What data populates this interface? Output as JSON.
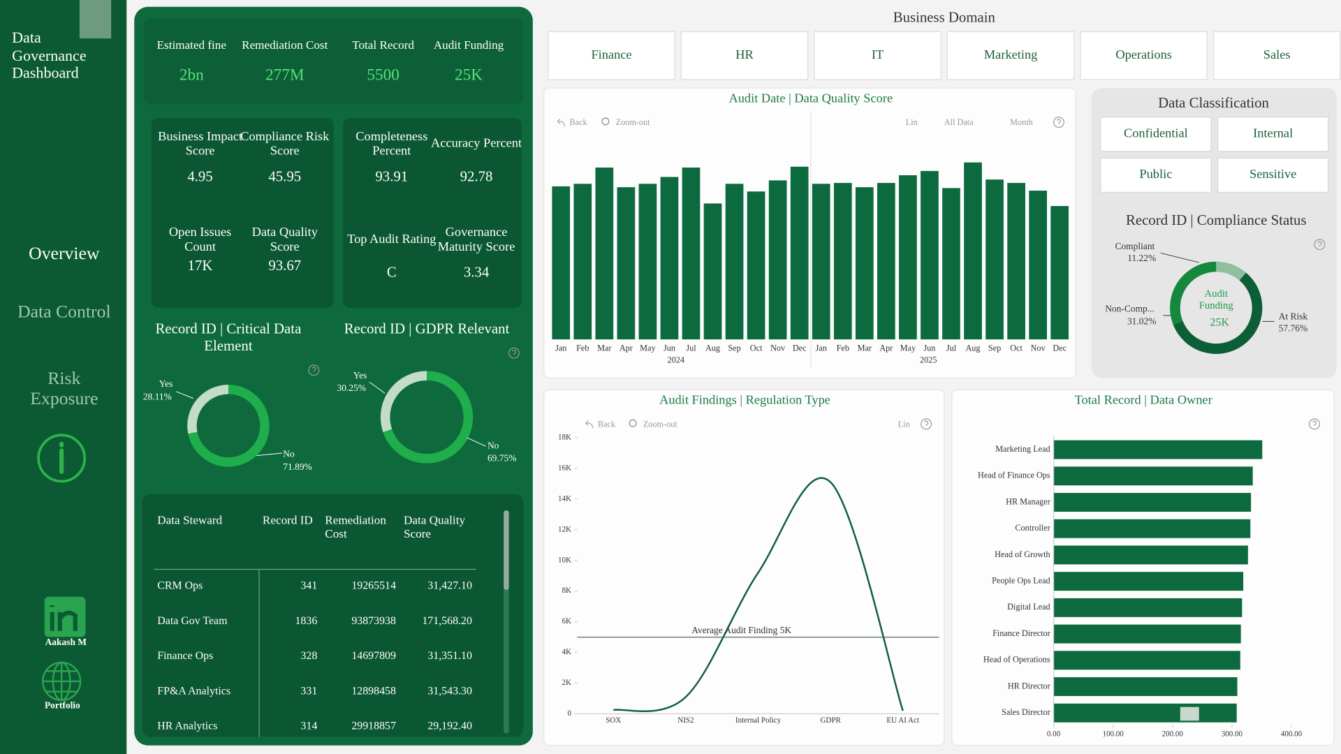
{
  "sidebar": {
    "title": "Data Governance Dashboard",
    "nav": [
      "Overview",
      "Data Control",
      "Risk Exposure"
    ],
    "links": [
      "Aakash M",
      "Portfolio"
    ]
  },
  "kpis": [
    {
      "label": "Estimated fine",
      "value": "2bn"
    },
    {
      "label": "Remediation Cost",
      "value": "277M"
    },
    {
      "label": "Total Record",
      "value": 5500
    },
    {
      "label": "Audit Funding",
      "value": "25K"
    }
  ],
  "cards": [
    [
      {
        "label": "Business Impact Score",
        "value": 4.95
      },
      {
        "label": "Compliance Risk Score",
        "value": 45.95
      },
      {
        "label": "Open Issues Count",
        "value": "17K"
      },
      {
        "label": "Data Quality Score",
        "value": 93.67
      }
    ],
    [
      {
        "label": "Completeness Percent",
        "value": 93.91
      },
      {
        "label": "Accuracy Percent",
        "value": 92.78
      },
      {
        "label": "Top Audit Rating",
        "value": "C"
      },
      {
        "label": "Governance Maturity Score",
        "value": 3.34
      }
    ]
  ],
  "domain_slicer": {
    "title": "Business Domain",
    "items": [
      "Finance",
      "HR",
      "IT",
      "Marketing",
      "Operations",
      "Sales"
    ]
  },
  "classification_slicer": {
    "title": "Data Classification",
    "items": [
      "Confidential",
      "Internal",
      "Public",
      "Sensitive"
    ]
  },
  "toolbar": {
    "back": "Back",
    "zoom": "Zoom-out",
    "scale": "Lin",
    "range": "All Data",
    "level": "Month"
  },
  "table": {
    "headers": [
      "Data Steward",
      "Record ID",
      "Remediation Cost",
      "Data Quality Score"
    ],
    "rows": [
      [
        "CRM Ops",
        341,
        19265514,
        "31,427.10"
      ],
      [
        "Data Gov Team",
        1836,
        93873938,
        "171,568.20"
      ],
      [
        "Finance Ops",
        328,
        14697809,
        "31,351.10"
      ],
      [
        "FP&A Analytics",
        331,
        12898458,
        "31,543.30"
      ],
      [
        "HR Analytics",
        314,
        29918857,
        "29,192.40"
      ]
    ]
  },
  "chart_data": [
    {
      "type": "donut",
      "title": "Record ID | Critical Data Element",
      "categories": [
        "Yes",
        "No"
      ],
      "values": [
        28.11,
        71.89
      ],
      "value_labels": [
        "28.11%",
        "71.89%"
      ],
      "colors": [
        "#c3dcc8",
        "#1fae4b"
      ]
    },
    {
      "type": "donut",
      "title": "Record ID | GDPR Relevant",
      "categories": [
        "Yes",
        "No"
      ],
      "values": [
        30.25,
        69.75
      ],
      "value_labels": [
        "30.25%",
        "69.75%"
      ],
      "colors": [
        "#c3dcc8",
        "#1fae4b"
      ]
    },
    {
      "type": "donut",
      "title": "Record ID | Compliance Status",
      "categories": [
        "Compliant",
        "Non-Comp...",
        "At Risk"
      ],
      "values": [
        11.22,
        31.02,
        57.76
      ],
      "value_labels": [
        "11.22%",
        "31.02%",
        "57.76%"
      ],
      "colors": [
        "#8fbf9b",
        "#14893e",
        "#0b5e36"
      ]
    },
    {
      "type": "bar",
      "title": "Audit Date | Data Quality Score",
      "categories": [
        "Jan",
        "Feb",
        "Mar",
        "Apr",
        "May",
        "Jun",
        "Jul",
        "Aug",
        "Sep",
        "Oct",
        "Nov",
        "Dec",
        "Jan",
        "Feb",
        "Mar",
        "Apr",
        "May",
        "Jun",
        "Jul",
        "Aug",
        "Sep",
        "Oct",
        "Nov",
        "Dec"
      ],
      "groups": [
        "2024",
        "2025"
      ],
      "values": [
        179,
        182,
        201,
        178,
        182,
        190,
        201,
        159,
        182,
        173,
        186,
        202,
        182,
        183,
        178,
        183,
        192,
        197,
        177,
        207,
        187,
        183,
        174,
        156
      ],
      "ylim": [
        0,
        215
      ],
      "color": "#0d6a3e"
    },
    {
      "type": "line",
      "title": "Audit Findings | Regulation Type",
      "categories": [
        "SOX",
        "NIS2",
        "Internal Policy",
        "GDPR",
        "EU AI Act"
      ],
      "values": [
        250,
        1100,
        9200,
        15100,
        200
      ],
      "ylim": [
        0,
        18000
      ],
      "yticks": [
        0,
        {
          "value": 2000,
          "label": "2K"
        },
        {
          "value": 4000,
          "label": "4K"
        },
        {
          "value": 6000,
          "label": "6K"
        },
        {
          "value": 8000,
          "label": "8K"
        },
        {
          "value": 10000,
          "label": "10K"
        },
        {
          "value": 12000,
          "label": "12K"
        },
        {
          "value": 14000,
          "label": "14K"
        },
        {
          "value": 16000,
          "label": "16K"
        },
        {
          "value": 18000,
          "label": "18K"
        }
      ],
      "reference_line": {
        "value": 5000,
        "label": "Average Audit Finding 5K"
      },
      "color": "#0d5e37"
    },
    {
      "type": "barh",
      "title": "Total Record | Data Owner",
      "categories": [
        "Marketing Lead",
        "Head of Finance Ops",
        "HR Manager",
        "Controller",
        "Head of Growth",
        "People Ops Lead",
        "Digital Lead",
        "Finance Director",
        "Head of Operations",
        "HR Director",
        "Sales Director"
      ],
      "values": [
        351,
        335,
        332,
        331,
        327,
        319,
        317,
        315,
        314,
        309,
        308
      ],
      "xlim": [
        0,
        400
      ],
      "xticks": [
        {
          "value": 0,
          "label": "0.00"
        },
        {
          "value": 100,
          "label": "100.00"
        },
        {
          "value": 200,
          "label": "200.00"
        },
        {
          "value": 300,
          "label": "300.00"
        },
        {
          "value": 400,
          "label": "400.00"
        }
      ],
      "color": "#0d6a3e"
    }
  ]
}
